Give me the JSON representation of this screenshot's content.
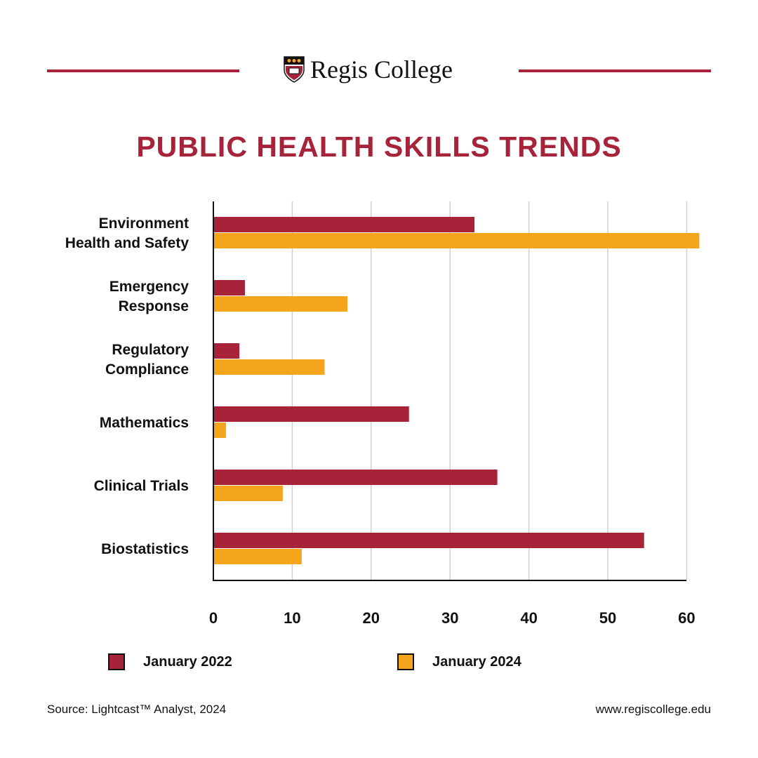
{
  "brand": {
    "name": "Regis College"
  },
  "colors": {
    "primary": "#a6233a",
    "secondary": "#f4a51c"
  },
  "chart_data": {
    "type": "bar",
    "orientation": "horizontal",
    "title": "PUBLIC HEALTH SKILLS TRENDS",
    "categories": [
      [
        "Environment",
        "Health and Safety"
      ],
      [
        "Emergency",
        "Response"
      ],
      [
        "Regulatory",
        "Compliance"
      ],
      [
        "Mathematics"
      ],
      [
        "Clinical Trials"
      ],
      [
        "Biostatistics"
      ]
    ],
    "series": [
      {
        "name": "January 2022",
        "color": "#a6233a",
        "values": [
          33.1,
          4.0,
          3.3,
          24.8,
          36.0,
          54.6
        ]
      },
      {
        "name": "January 2024",
        "color": "#f4a51c",
        "values": [
          61.6,
          17.0,
          14.1,
          1.6,
          8.8,
          11.2
        ]
      }
    ],
    "xticks": [
      "0",
      "10",
      "20",
      "30",
      "40",
      "50",
      "60"
    ],
    "xlim": [
      0,
      60
    ],
    "grid": true,
    "legend_position": "bottom"
  },
  "footer": {
    "source": "Source: Lightcast™ Analyst, 2024",
    "url": "www.regiscollege.edu"
  }
}
